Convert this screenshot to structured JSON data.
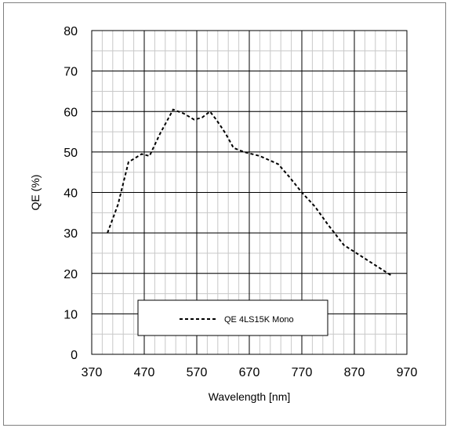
{
  "chart_data": {
    "type": "line",
    "title": "",
    "xlabel": "Wavelength [nm]",
    "ylabel": "QE (%)",
    "xlim": [
      370,
      970
    ],
    "ylim": [
      0,
      80
    ],
    "x_ticks": [
      370,
      470,
      570,
      670,
      770,
      870,
      970
    ],
    "y_ticks": [
      0,
      10,
      20,
      30,
      40,
      50,
      60,
      70,
      80
    ],
    "x_tick_labels": [
      "370",
      "470",
      "570",
      "670",
      "770",
      "870",
      "970"
    ],
    "y_tick_labels": [
      "0",
      "10",
      "20",
      "30",
      "40",
      "50",
      "60",
      "70",
      "80"
    ],
    "grid": true,
    "legend_position": "bottom-left",
    "series": [
      {
        "name": "QE 4LS15K Mono",
        "line_style": "dashed",
        "color": "#000000",
        "x": [
          400,
          420,
          440,
          465,
          480,
          500,
          525,
          545,
          565,
          580,
          595,
          607,
          615,
          625,
          640,
          660,
          690,
          725,
          745,
          770,
          795,
          820,
          850,
          880,
          910,
          940
        ],
        "y": [
          30,
          37,
          47.5,
          49.5,
          49,
          54.5,
          60.5,
          59.5,
          58,
          58.5,
          60,
          58,
          56.5,
          54.5,
          51,
          50,
          49,
          47,
          44,
          40,
          36.5,
          32,
          27,
          24.5,
          22,
          19.5
        ]
      }
    ]
  }
}
